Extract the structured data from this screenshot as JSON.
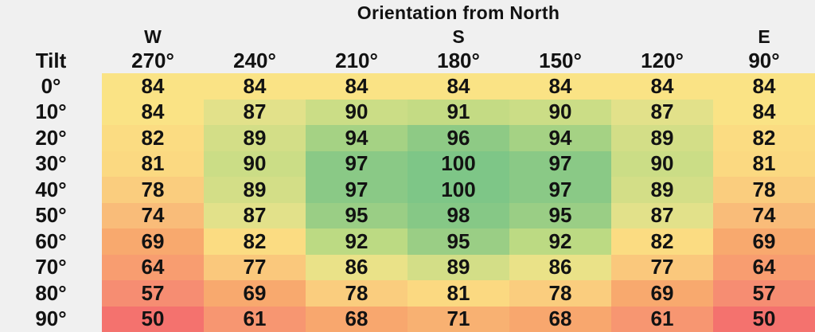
{
  "title": "Orientation from North",
  "corner_label": "Tilt",
  "colors": {
    "background": "#f0f0f0",
    "text": "#121212"
  },
  "chart_data": {
    "type": "heatmap",
    "title": "Orientation from North",
    "xlabel": "Orientation from North",
    "ylabel": "Tilt",
    "x_ticks": [
      "270°",
      "240°",
      "210°",
      "180°",
      "150°",
      "120°",
      "90°"
    ],
    "compass_labels": {
      "270°": "W",
      "180°": "S",
      "90°": "E"
    },
    "y_ticks": [
      "0°",
      "10°",
      "20°",
      "30°",
      "40°",
      "50°",
      "60°",
      "70°",
      "80°",
      "90°"
    ],
    "values": [
      [
        84,
        84,
        84,
        84,
        84,
        84,
        84
      ],
      [
        84,
        87,
        90,
        91,
        90,
        87,
        84
      ],
      [
        82,
        89,
        94,
        96,
        94,
        89,
        82
      ],
      [
        81,
        90,
        97,
        100,
        97,
        90,
        81
      ],
      [
        78,
        89,
        97,
        100,
        97,
        89,
        78
      ],
      [
        74,
        87,
        95,
        98,
        95,
        87,
        74
      ],
      [
        69,
        82,
        92,
        95,
        92,
        82,
        69
      ],
      [
        64,
        77,
        86,
        89,
        86,
        77,
        64
      ],
      [
        57,
        69,
        78,
        81,
        78,
        69,
        57
      ],
      [
        50,
        61,
        68,
        71,
        68,
        61,
        50
      ]
    ],
    "value_range": [
      50,
      100
    ],
    "grid": false,
    "legend_position": "none",
    "color_scale": [
      {
        "value": 50,
        "color": "#f4726e"
      },
      {
        "value": 57,
        "color": "#f68d72"
      },
      {
        "value": 64,
        "color": "#f89d70"
      },
      {
        "value": 69,
        "color": "#f8a96e"
      },
      {
        "value": 74,
        "color": "#f9bc79"
      },
      {
        "value": 81,
        "color": "#fbd981"
      },
      {
        "value": 84,
        "color": "#fae385"
      },
      {
        "value": 87,
        "color": "#e2e18a"
      },
      {
        "value": 92,
        "color": "#bcda83"
      },
      {
        "value": 96,
        "color": "#8eca85"
      },
      {
        "value": 100,
        "color": "#7ec687"
      }
    ]
  }
}
